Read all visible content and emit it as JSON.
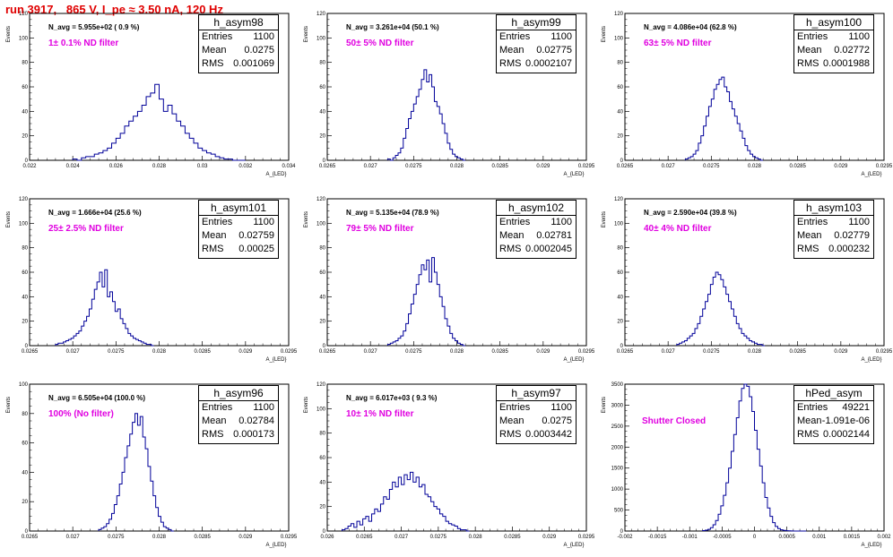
{
  "header": {
    "run_title": "run 3917,   865 V, I_pe ≈ 3.50 nA, 120 Hz"
  },
  "chart_data": [
    {
      "type": "histogram",
      "name": "h_asym98",
      "n_avg": "N_avg = 5.955e+02 ( 0.9 %)",
      "filter": "1± 0.1% ND filter",
      "stats": {
        "entries_label": "Entries",
        "entries": "1100",
        "mean_label": "Mean",
        "mean": "0.0275",
        "rms_label": "RMS",
        "rms": "0.001069"
      },
      "xlim": [
        0.022,
        0.034
      ],
      "ylim": [
        0,
        120
      ],
      "xticks": [
        "0.022",
        "0.024",
        "0.026",
        "0.028",
        "0.03",
        "0.032",
        "0.034"
      ],
      "xtick_values": [
        0.022,
        0.024,
        0.026,
        0.028,
        0.03,
        0.032,
        0.034
      ],
      "yticks": [
        "0",
        "20",
        "40",
        "60",
        "80",
        "100",
        "120"
      ],
      "ytick_values": [
        0,
        20,
        40,
        60,
        80,
        100,
        120
      ],
      "xlabel": "A_{LED}",
      "ylabel": "Events",
      "bins_start": 0.024,
      "bin_width": 0.0002,
      "counts": [
        1,
        0,
        2,
        3,
        3,
        5,
        6,
        8,
        10,
        14,
        18,
        22,
        28,
        32,
        36,
        40,
        45,
        52,
        55,
        62,
        50,
        40,
        45,
        38,
        32,
        28,
        22,
        18,
        14,
        10,
        8,
        6,
        5,
        3,
        2,
        1,
        1,
        0,
        0,
        0
      ]
    },
    {
      "type": "histogram",
      "name": "h_asym99",
      "n_avg": "N_avg = 3.261e+04 (50.1 %)",
      "filter": "50± 5% ND filter",
      "stats": {
        "entries_label": "Entries",
        "entries": "1100",
        "mean_label": "Mean",
        "mean": "0.02775",
        "rms_label": "RMS",
        "rms": "0.0002107"
      },
      "xlim": [
        0.0265,
        0.0295
      ],
      "ylim": [
        0,
        120
      ],
      "xticks": [
        "0.0265",
        "0.027",
        "0.0275",
        "0.028",
        "0.0285",
        "0.029",
        "0.0295"
      ],
      "xtick_values": [
        0.0265,
        0.027,
        0.0275,
        0.028,
        0.0285,
        0.029,
        0.0295
      ],
      "yticks": [
        "0",
        "20",
        "40",
        "60",
        "80",
        "100",
        "120"
      ],
      "ytick_values": [
        0,
        20,
        40,
        60,
        80,
        100,
        120
      ],
      "xlabel": "A_{LED}",
      "ylabel": "Events",
      "bins_start": 0.0272,
      "bin_width": 3e-05,
      "counts": [
        1,
        0,
        2,
        4,
        6,
        10,
        18,
        26,
        34,
        40,
        46,
        52,
        58,
        66,
        74,
        64,
        70,
        60,
        48,
        44,
        38,
        30,
        22,
        14,
        9,
        5,
        3,
        2,
        1,
        0
      ]
    },
    {
      "type": "histogram",
      "name": "h_asym100",
      "n_avg": "N_avg = 4.086e+04 (62.8 %)",
      "filter": "63± 5% ND filter",
      "stats": {
        "entries_label": "Entries",
        "entries": "1100",
        "mean_label": "Mean",
        "mean": "0.02772",
        "rms_label": "RMS",
        "rms": "0.0001988"
      },
      "xlim": [
        0.0265,
        0.0295
      ],
      "ylim": [
        0,
        120
      ],
      "xticks": [
        "0.0265",
        "0.027",
        "0.0275",
        "0.028",
        "0.0285",
        "0.029",
        "0.0295"
      ],
      "xtick_values": [
        0.0265,
        0.027,
        0.0275,
        0.028,
        0.0285,
        0.029,
        0.0295
      ],
      "yticks": [
        "0",
        "20",
        "40",
        "60",
        "80",
        "100",
        "120"
      ],
      "ytick_values": [
        0,
        20,
        40,
        60,
        80,
        100,
        120
      ],
      "xlabel": "A_{LED}",
      "ylabel": "Events",
      "bins_start": 0.0272,
      "bin_width": 3e-05,
      "counts": [
        1,
        2,
        3,
        5,
        8,
        14,
        20,
        28,
        36,
        44,
        50,
        58,
        62,
        66,
        68,
        60,
        56,
        48,
        42,
        36,
        30,
        24,
        18,
        12,
        8,
        5,
        3,
        2,
        1,
        0
      ]
    },
    {
      "type": "histogram",
      "name": "h_asym101",
      "n_avg": "N_avg = 1.666e+04 (25.6 %)",
      "filter": "25± 2.5% ND filter",
      "stats": {
        "entries_label": "Entries",
        "entries": "1100",
        "mean_label": "Mean",
        "mean": "0.02759",
        "rms_label": "RMS",
        "rms": "0.00025"
      },
      "xlim": [
        0.0265,
        0.0295
      ],
      "ylim": [
        0,
        120
      ],
      "xticks": [
        "0.0265",
        "0.027",
        "0.0275",
        "0.028",
        "0.0285",
        "0.029",
        "0.0295"
      ],
      "xtick_values": [
        0.0265,
        0.027,
        0.0275,
        0.028,
        0.0285,
        0.029,
        0.0295
      ],
      "yticks": [
        "0",
        "20",
        "40",
        "60",
        "80",
        "100",
        "120"
      ],
      "ytick_values": [
        0,
        20,
        40,
        60,
        80,
        100,
        120
      ],
      "xlabel": "A_{LED}",
      "ylabel": "Events",
      "bins_start": 0.0268,
      "bin_width": 3e-05,
      "counts": [
        1,
        2,
        2,
        3,
        4,
        5,
        6,
        8,
        10,
        12,
        16,
        20,
        24,
        30,
        38,
        46,
        52,
        60,
        48,
        62,
        40,
        44,
        36,
        28,
        30,
        22,
        18,
        14,
        10,
        8,
        6,
        5,
        4,
        3,
        2,
        1,
        1,
        0
      ]
    },
    {
      "type": "histogram",
      "name": "h_asym102",
      "n_avg": "N_avg = 5.135e+04 (78.9 %)",
      "filter": "79± 5% ND filter",
      "stats": {
        "entries_label": "Entries",
        "entries": "1100",
        "mean_label": "Mean",
        "mean": "0.02781",
        "rms_label": "RMS",
        "rms": "0.0002045"
      },
      "xlim": [
        0.0265,
        0.0295
      ],
      "ylim": [
        0,
        120
      ],
      "xticks": [
        "0.0265",
        "0.027",
        "0.0275",
        "0.028",
        "0.0285",
        "0.029",
        "0.0295"
      ],
      "xtick_values": [
        0.0265,
        0.027,
        0.0275,
        0.028,
        0.0285,
        0.029,
        0.0295
      ],
      "yticks": [
        "0",
        "20",
        "40",
        "60",
        "80",
        "100",
        "120"
      ],
      "ytick_values": [
        0,
        20,
        40,
        60,
        80,
        100,
        120
      ],
      "xlabel": "A_{LED}",
      "ylabel": "Events",
      "bins_start": 0.0272,
      "bin_width": 3e-05,
      "counts": [
        1,
        2,
        3,
        4,
        6,
        8,
        12,
        18,
        26,
        34,
        42,
        50,
        58,
        66,
        62,
        70,
        52,
        72,
        60,
        50,
        40,
        32,
        22,
        16,
        10,
        6,
        4,
        2,
        1,
        0
      ]
    },
    {
      "type": "histogram",
      "name": "h_asym103",
      "n_avg": "N_avg = 2.590e+04 (39.8 %)",
      "filter": "40± 4% ND filter",
      "stats": {
        "entries_label": "Entries",
        "entries": "1100",
        "mean_label": "Mean",
        "mean": "0.02779",
        "rms_label": "RMS",
        "rms": "0.000232"
      },
      "xlim": [
        0.0265,
        0.0295
      ],
      "ylim": [
        0,
        120
      ],
      "xticks": [
        "0.0265",
        "0.027",
        "0.0275",
        "0.028",
        "0.0285",
        "0.029",
        "0.0295"
      ],
      "xtick_values": [
        0.0265,
        0.027,
        0.0275,
        0.028,
        0.0285,
        0.029,
        0.0295
      ],
      "yticks": [
        "0",
        "20",
        "40",
        "60",
        "80",
        "100",
        "120"
      ],
      "ytick_values": [
        0,
        20,
        40,
        60,
        80,
        100,
        120
      ],
      "xlabel": "A_{LED}",
      "ylabel": "Events",
      "bins_start": 0.0271,
      "bin_width": 3e-05,
      "counts": [
        1,
        2,
        3,
        4,
        6,
        8,
        10,
        14,
        18,
        24,
        30,
        36,
        42,
        50,
        56,
        60,
        58,
        54,
        48,
        42,
        36,
        30,
        24,
        18,
        14,
        10,
        8,
        6,
        4,
        3,
        2,
        1,
        1,
        0
      ]
    },
    {
      "type": "histogram",
      "name": "h_asym96",
      "n_avg": "N_avg = 6.505e+04 (100.0 %)",
      "filter": "100% (No filter)",
      "stats": {
        "entries_label": "Entries",
        "entries": "1100",
        "mean_label": "Mean",
        "mean": "0.02784",
        "rms_label": "RMS",
        "rms": "0.000173"
      },
      "xlim": [
        0.0265,
        0.0295
      ],
      "ylim": [
        0,
        100
      ],
      "xticks": [
        "0.0265",
        "0.027",
        "0.0275",
        "0.028",
        "0.0285",
        "0.029",
        "0.0295"
      ],
      "xtick_values": [
        0.0265,
        0.027,
        0.0275,
        0.028,
        0.0285,
        0.029,
        0.0295
      ],
      "yticks": [
        "0",
        "20",
        "40",
        "60",
        "80",
        "100"
      ],
      "ytick_values": [
        0,
        20,
        40,
        60,
        80,
        100
      ],
      "xlabel": "A_{LED}",
      "ylabel": "Events",
      "bins_start": 0.0273,
      "bin_width": 3e-05,
      "counts": [
        1,
        2,
        3,
        5,
        8,
        12,
        18,
        24,
        32,
        40,
        50,
        58,
        66,
        74,
        80,
        72,
        78,
        64,
        56,
        44,
        34,
        24,
        16,
        10,
        6,
        3,
        2,
        1,
        0
      ]
    },
    {
      "type": "histogram",
      "name": "h_asym97",
      "n_avg": "N_avg = 6.017e+03 ( 9.3 %)",
      "filter": "10± 1% ND filter",
      "stats": {
        "entries_label": "Entries",
        "entries": "1100",
        "mean_label": "Mean",
        "mean": "0.0275",
        "rms_label": "RMS",
        "rms": "0.0003442"
      },
      "xlim": [
        0.026,
        0.0295
      ],
      "ylim": [
        0,
        120
      ],
      "xticks": [
        "0.026",
        "0.0265",
        "0.027",
        "0.0275",
        "0.028",
        "0.0285",
        "0.029",
        "0.0295"
      ],
      "xtick_values": [
        0.026,
        0.0265,
        0.027,
        0.0275,
        0.028,
        0.0285,
        0.029,
        0.0295
      ],
      "yticks": [
        "0",
        "20",
        "40",
        "60",
        "80",
        "100",
        "120"
      ],
      "ytick_values": [
        0,
        20,
        40,
        60,
        80,
        100,
        120
      ],
      "xlabel": "A_{LED}",
      "ylabel": "Events",
      "bins_start": 0.0262,
      "bin_width": 4e-05,
      "counts": [
        1,
        2,
        4,
        6,
        3,
        8,
        5,
        10,
        12,
        8,
        14,
        18,
        16,
        22,
        28,
        26,
        34,
        40,
        36,
        44,
        38,
        46,
        42,
        48,
        40,
        44,
        36,
        38,
        30,
        28,
        24,
        20,
        18,
        14,
        12,
        8,
        6,
        5,
        4,
        2,
        1,
        1,
        0
      ]
    },
    {
      "type": "histogram",
      "name": "hPed_asym",
      "annotation": "Shutter Closed",
      "stats": {
        "entries_label": "Entries",
        "entries": "49221",
        "mean_label": "Mean",
        "mean": "-1.091e-06",
        "rms_label": "RMS",
        "rms": "0.0002144"
      },
      "xlim": [
        -0.002,
        0.002
      ],
      "ylim": [
        0,
        3500
      ],
      "xticks": [
        "-0.002",
        "-0.0015",
        "-0.001",
        "-0.0005",
        "0",
        "0.0005",
        "0.001",
        "0.0015",
        "0.002"
      ],
      "xtick_values": [
        -0.002,
        -0.0015,
        -0.001,
        -0.0005,
        0,
        0.0005,
        0.001,
        0.0015,
        0.002
      ],
      "yticks": [
        "0",
        "500",
        "1000",
        "1500",
        "2000",
        "2500",
        "3000",
        "3500"
      ],
      "ytick_values": [
        0,
        500,
        1000,
        1500,
        2000,
        2500,
        3000,
        3500
      ],
      "xlabel": "A_{LED}",
      "ylabel": "Events",
      "bins_start": -0.0008,
      "bin_width": 4e-05,
      "counts": [
        10,
        20,
        40,
        80,
        150,
        250,
        400,
        600,
        850,
        1150,
        1500,
        1900,
        2300,
        2700,
        3100,
        3400,
        3550,
        3450,
        3200,
        2850,
        2400,
        1950,
        1550,
        1150,
        800,
        550,
        350,
        200,
        110,
        60,
        30,
        15,
        8,
        4,
        2,
        1,
        0,
        0,
        0,
        0
      ]
    }
  ]
}
